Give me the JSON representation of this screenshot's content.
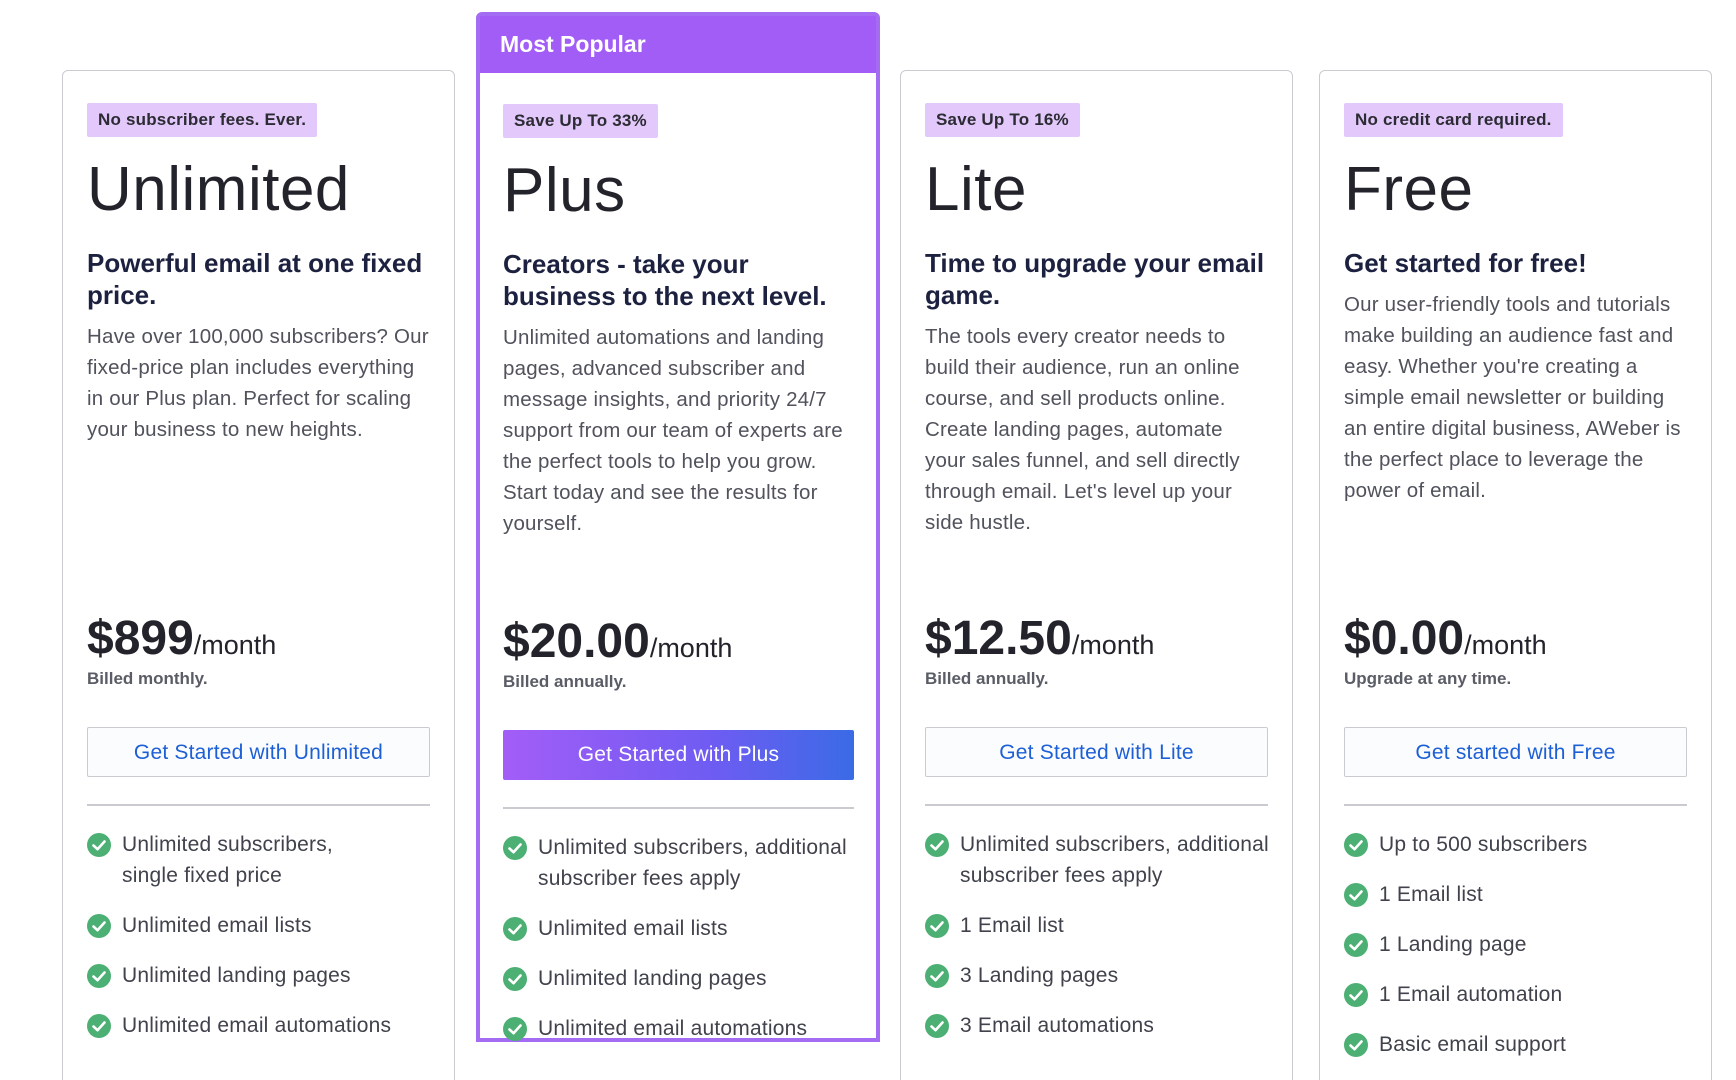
{
  "plans": [
    {
      "id": "unlimited",
      "badge": "No subscriber fees. Ever.",
      "name": "Unlimited",
      "tagline": "Powerful email at one fixed price.",
      "description": "Have over 100,000 subscribers? Our fixed-price plan includes everything in our Plus plan. Perfect for scaling your business to new heights.",
      "price": "$899",
      "period": "/month",
      "billing": "Billed monthly.",
      "cta": "Get Started with Unlimited",
      "features": [
        "Unlimited subscribers, single fixed price",
        "Unlimited email lists",
        "Unlimited landing pages",
        "Unlimited email automations"
      ]
    },
    {
      "id": "plus",
      "banner": "Most Popular",
      "badge": "Save Up To 33%",
      "name": "Plus",
      "tagline": "Creators - take your business to the next level.",
      "description": "Unlimited automations and landing pages, advanced subscriber and message insights, and priority 24/7 support from our team of experts are the perfect tools to help you grow. Start today and see the results for yourself.",
      "price": "$20.00",
      "period": "/month",
      "billing": "Billed annually.",
      "cta": "Get Started with Plus",
      "features": [
        "Unlimited subscribers, additional subscriber fees apply",
        "Unlimited email lists",
        "Unlimited landing pages",
        "Unlimited email automations"
      ]
    },
    {
      "id": "lite",
      "badge": "Save Up To 16%",
      "name": "Lite",
      "tagline": "Time to upgrade your email game.",
      "description": "The tools every creator needs to build their audience, run an online course, and sell products online. Create landing pages, automate your sales funnel, and sell directly through email. Let's level up your side hustle.",
      "price": "$12.50",
      "period": "/month",
      "billing": "Billed annually.",
      "cta": "Get Started with Lite",
      "features": [
        "Unlimited subscribers, additional subscriber fees apply",
        "1 Email list",
        "3 Landing pages",
        "3 Email automations"
      ]
    },
    {
      "id": "free",
      "badge": "No credit card required.",
      "name": "Free",
      "tagline": "Get started for free!",
      "description": "Our user-friendly tools and tutorials make building an audience fast and easy. Whether you're creating a simple email newsletter or building an entire digital business, AWeber is the perfect place to leverage the power of email.",
      "price": "$0.00",
      "period": "/month",
      "billing": "Upgrade at any time.",
      "cta": "Get started with Free",
      "features": [
        "Up to 500 subscribers",
        "1 Email list",
        "1 Landing page",
        "1 Email automation",
        "Basic email support"
      ]
    }
  ],
  "colors": {
    "accent": "#a35df7",
    "badge_bg": "#e3c8fb",
    "cta_text": "#1d5fd6",
    "check": "#4caf73"
  },
  "icons": {
    "feature_check": "check-circle-icon"
  }
}
